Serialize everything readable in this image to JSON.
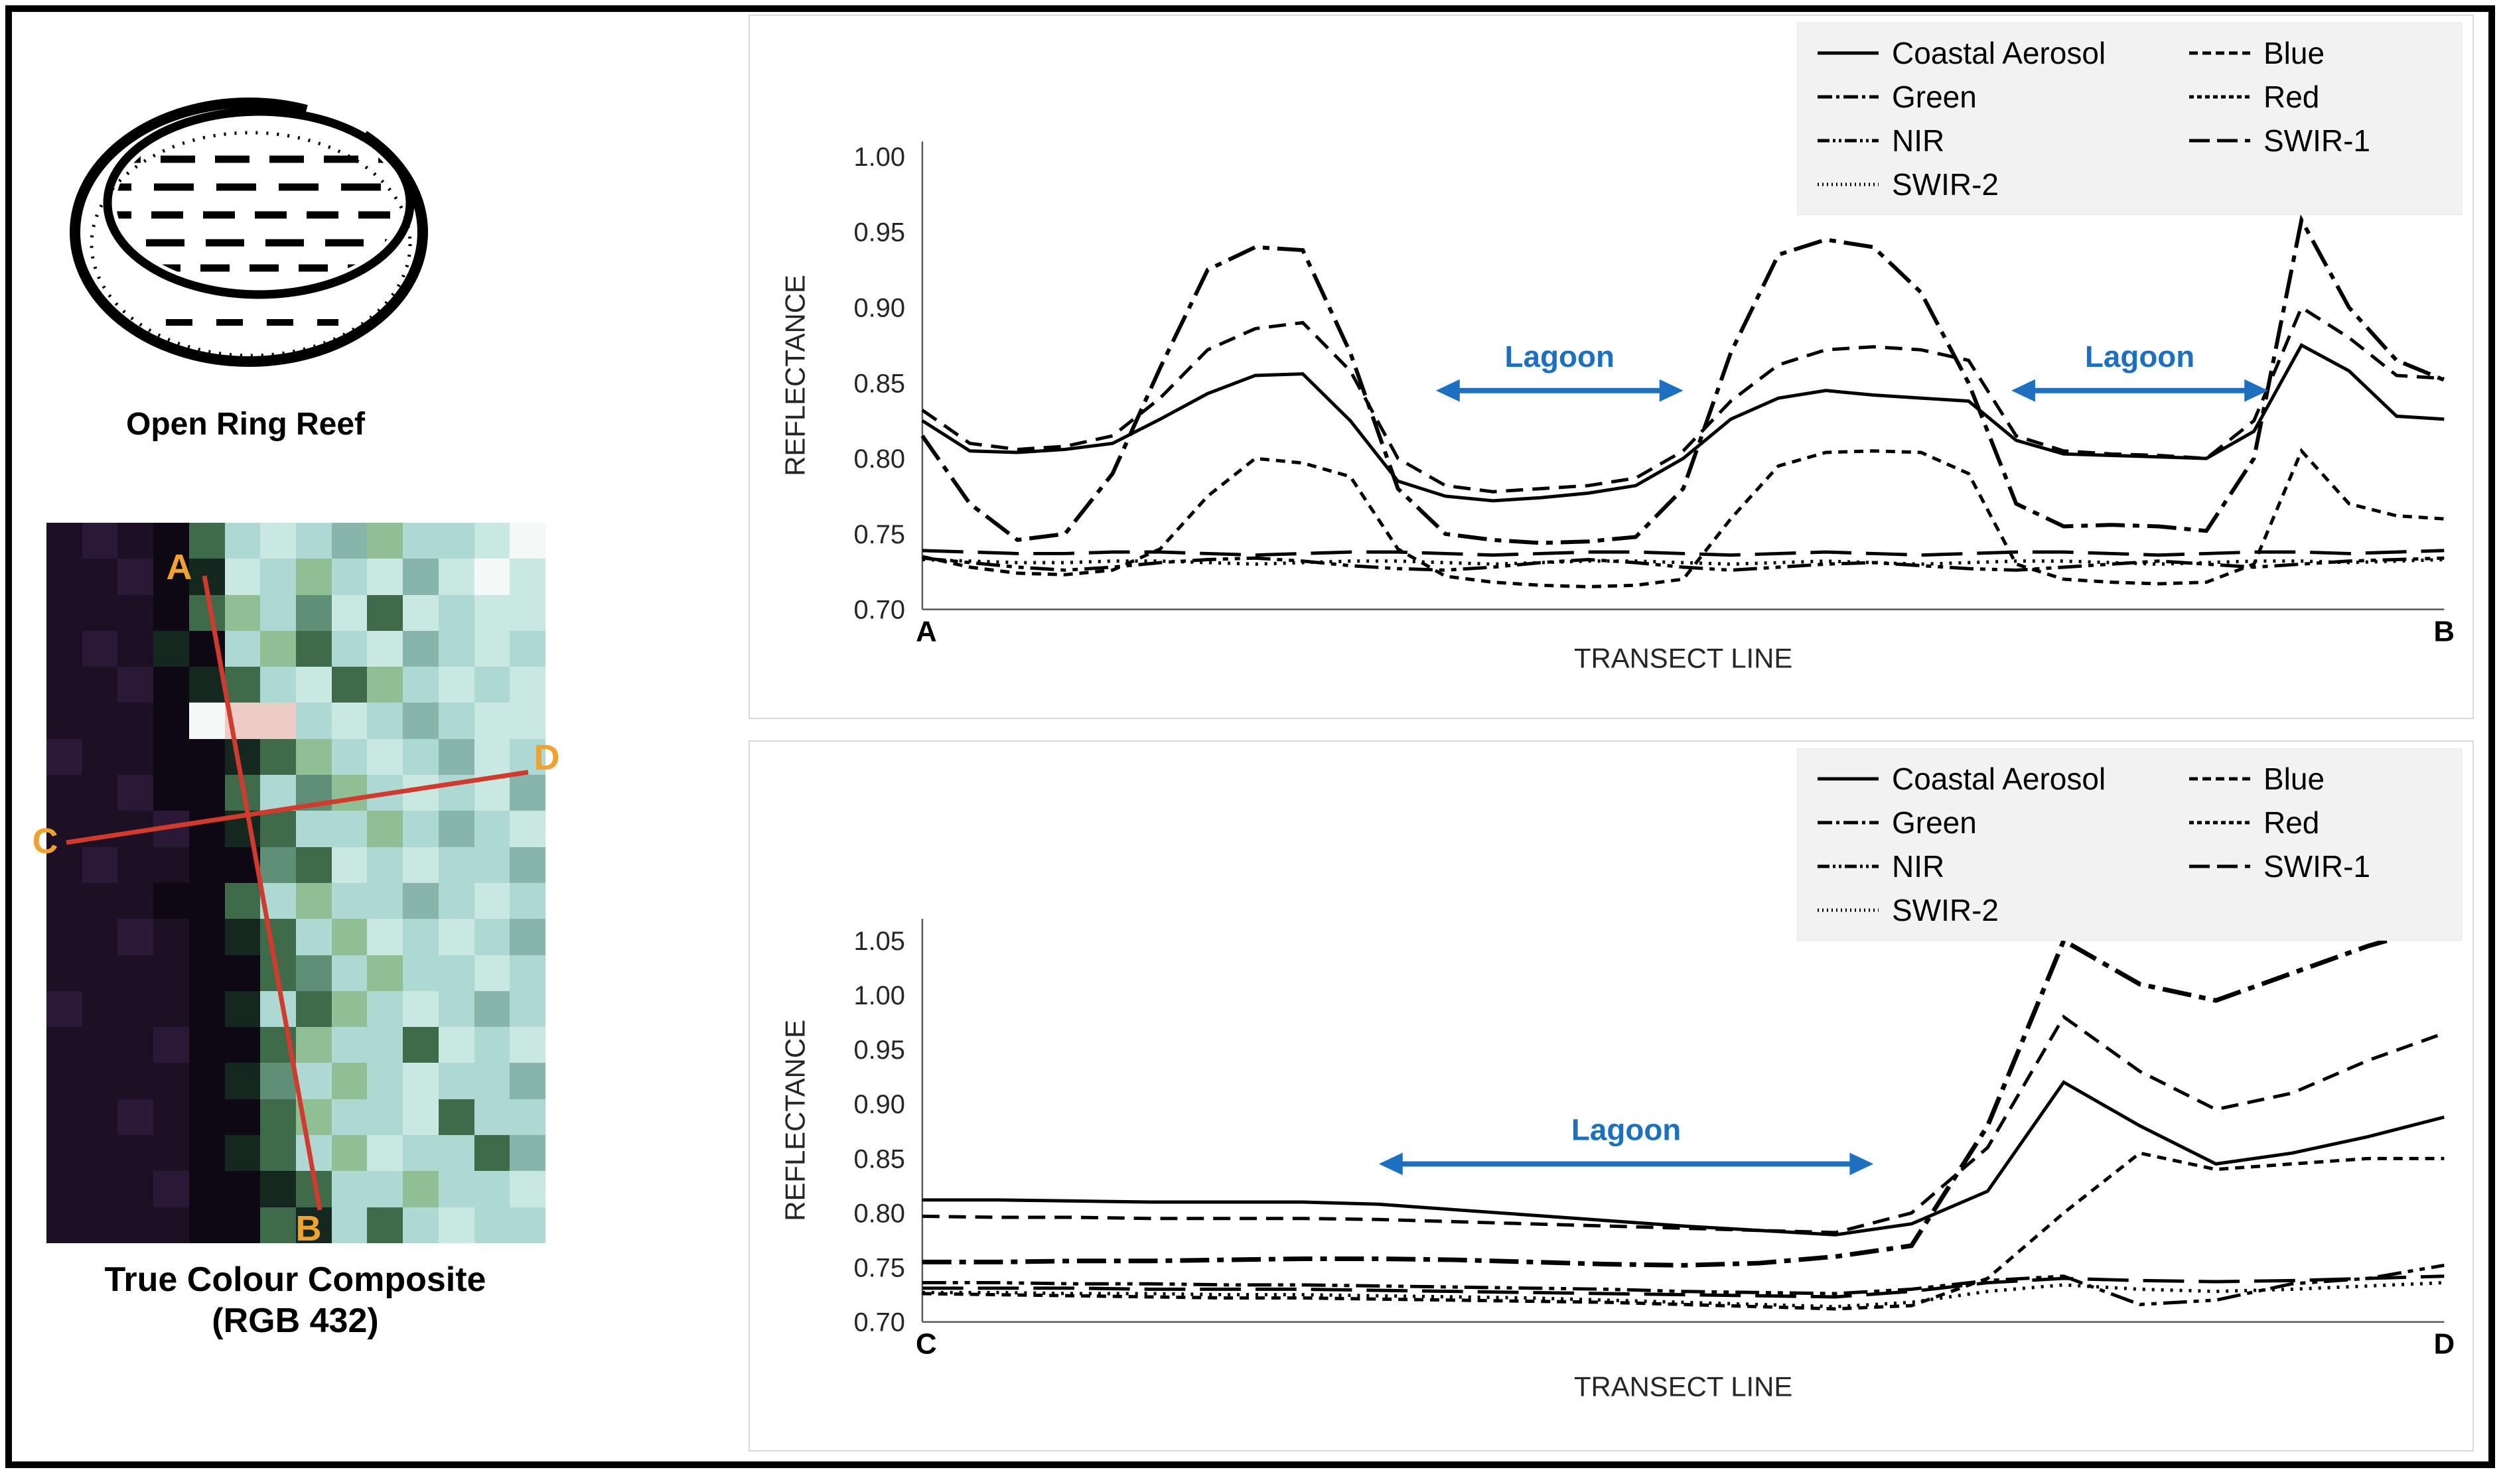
{
  "colors": {
    "transect_line": "#d23a2e",
    "transect_label": "#f0a230",
    "annotation_blue": "#1d6fbf",
    "series_color": "#000000",
    "legend_bg": "#f2f2f2"
  },
  "left_panel": {
    "reef_caption": "Open Ring Reef",
    "composite_caption_line1": "True Colour Composite",
    "composite_caption_line2": "(RGB 432)"
  },
  "satellite": {
    "palette": {
      "d": "#1c1024",
      "D": "#2a1836",
      "b": "#0e0814",
      "t": "#14281f",
      "g": "#3f6b4a",
      "G": "#8fbf92",
      "m": "#5f8f77",
      "c": "#aed8d2",
      "C": "#c9e8e2",
      "w": "#f4f8f6",
      "p": "#ecccc4",
      "s": "#87b4ab"
    },
    "rows": [
      "dDdbgcCcsGccCw",
      "ddDbtCcGcCsCwC",
      "dddbgGcmCgCcCC",
      "dDdtbcGgcCscCc",
      "ddDbtgcCgGcCcC",
      "dddbwppcCcscCC",
      "DddbbtgGcCcsCc",
      "ddDbbgcmGcCcCs",
      "dddDbtgccGcscC",
      "dDddbbmgCcCccs",
      "dddbbgcGccscCc",
      "ddDdbtgcGCcCcs",
      "ddddbbgmcGccCc",
      "DdddbtcgGcCcsc",
      "dddDbbgGccgCcC",
      "ddddbtmcGcCccs",
      "ddDdbbgGccCgcc",
      "ddddbtgcGCccgs",
      "dddDbbtgccGccC",
      "ddddbbgtcgcCcc"
    ],
    "transects": {
      "ab": {
        "start_label": "A",
        "end_label": "B"
      },
      "cd": {
        "start_label": "C",
        "end_label": "D"
      }
    }
  },
  "chart_data": [
    {
      "type": "line",
      "title": "",
      "xlabel": "TRANSECT LINE",
      "ylabel": "REFLECTANCE",
      "x_start_label": "A",
      "x_end_label": "B",
      "ylim": [
        0.7,
        1.01
      ],
      "yticks": [
        0.7,
        0.75,
        0.8,
        0.85,
        0.9,
        0.95,
        1.0
      ],
      "grid": false,
      "legend_position": "top-right",
      "series": [
        {
          "name": "Coastal Aerosol",
          "dash": "",
          "width": 5,
          "values": [
            0.825,
            0.805,
            0.804,
            0.806,
            0.81,
            0.826,
            0.843,
            0.855,
            0.856,
            0.825,
            0.785,
            0.775,
            0.772,
            0.774,
            0.777,
            0.782,
            0.8,
            0.826,
            0.84,
            0.845,
            0.842,
            0.84,
            0.838,
            0.812,
            0.803,
            0.802,
            0.801,
            0.8,
            0.818,
            0.875,
            0.858,
            0.828,
            0.826
          ]
        },
        {
          "name": "Blue",
          "dash": "26 14",
          "width": 5,
          "values": [
            0.832,
            0.81,
            0.806,
            0.808,
            0.815,
            0.84,
            0.872,
            0.886,
            0.89,
            0.858,
            0.8,
            0.782,
            0.778,
            0.78,
            0.782,
            0.787,
            0.805,
            0.838,
            0.862,
            0.872,
            0.874,
            0.872,
            0.865,
            0.815,
            0.805,
            0.803,
            0.802,
            0.8,
            0.825,
            0.9,
            0.88,
            0.855,
            0.853
          ]
        },
        {
          "name": "Green",
          "dash": "44 12 10 12",
          "width": 6,
          "values": [
            0.815,
            0.77,
            0.746,
            0.75,
            0.79,
            0.86,
            0.925,
            0.94,
            0.938,
            0.87,
            0.78,
            0.75,
            0.746,
            0.744,
            0.745,
            0.748,
            0.78,
            0.87,
            0.935,
            0.945,
            0.94,
            0.91,
            0.85,
            0.77,
            0.755,
            0.756,
            0.755,
            0.752,
            0.8,
            0.958,
            0.9,
            0.865,
            0.852
          ]
        },
        {
          "name": "Red",
          "dash": "14 10",
          "width": 5,
          "values": [
            0.735,
            0.728,
            0.724,
            0.723,
            0.726,
            0.74,
            0.775,
            0.8,
            0.797,
            0.788,
            0.74,
            0.722,
            0.718,
            0.716,
            0.715,
            0.716,
            0.72,
            0.76,
            0.795,
            0.804,
            0.805,
            0.804,
            0.79,
            0.73,
            0.72,
            0.718,
            0.717,
            0.718,
            0.73,
            0.805,
            0.77,
            0.762,
            0.76
          ]
        },
        {
          "name": "NIR",
          "dash": "36 10 8 10 8 10",
          "width": 5,
          "values": [
            0.734,
            0.731,
            0.728,
            0.726,
            0.728,
            0.731,
            0.733,
            0.734,
            0.732,
            0.729,
            0.727,
            0.726,
            0.728,
            0.731,
            0.733,
            0.731,
            0.728,
            0.726,
            0.728,
            0.73,
            0.731,
            0.729,
            0.727,
            0.726,
            0.728,
            0.73,
            0.732,
            0.73,
            0.728,
            0.73,
            0.732,
            0.733,
            0.734
          ]
        },
        {
          "name": "SWIR-1",
          "dash": "62 22",
          "width": 5,
          "values": [
            0.739,
            0.738,
            0.737,
            0.737,
            0.738,
            0.738,
            0.737,
            0.736,
            0.737,
            0.738,
            0.738,
            0.737,
            0.736,
            0.737,
            0.738,
            0.738,
            0.737,
            0.736,
            0.737,
            0.738,
            0.737,
            0.736,
            0.737,
            0.738,
            0.738,
            0.737,
            0.736,
            0.737,
            0.738,
            0.738,
            0.737,
            0.738,
            0.739
          ]
        },
        {
          "name": "SWIR-2",
          "dash": "4 10",
          "width": 5,
          "values": [
            0.733,
            0.732,
            0.731,
            0.731,
            0.732,
            0.732,
            0.731,
            0.73,
            0.731,
            0.732,
            0.732,
            0.731,
            0.73,
            0.731,
            0.732,
            0.732,
            0.731,
            0.73,
            0.731,
            0.732,
            0.731,
            0.73,
            0.731,
            0.732,
            0.732,
            0.731,
            0.73,
            0.731,
            0.732,
            0.732,
            0.731,
            0.732,
            0.733
          ]
        }
      ],
      "annotations": [
        {
          "label": "Lagoon",
          "x_from": 10.8,
          "x_to": 16.0,
          "y": 0.845
        },
        {
          "label": "Lagoon",
          "x_from": 22.9,
          "x_to": 28.3,
          "y": 0.845
        }
      ]
    },
    {
      "type": "line",
      "title": "",
      "xlabel": "TRANSECT LINE",
      "ylabel": "REFLECTANCE",
      "x_start_label": "C",
      "x_end_label": "D",
      "ylim": [
        0.7,
        1.07
      ],
      "yticks": [
        0.7,
        0.75,
        0.8,
        0.85,
        0.9,
        0.95,
        1.0,
        1.05
      ],
      "grid": false,
      "legend_position": "top-right",
      "series": [
        {
          "name": "Coastal Aerosol",
          "dash": "",
          "width": 5,
          "values": [
            0.812,
            0.812,
            0.811,
            0.81,
            0.81,
            0.81,
            0.808,
            0.803,
            0.798,
            0.793,
            0.788,
            0.784,
            0.78,
            0.79,
            0.82,
            0.92,
            0.88,
            0.845,
            0.855,
            0.87,
            0.888
          ]
        },
        {
          "name": "Blue",
          "dash": "26 14",
          "width": 5,
          "values": [
            0.797,
            0.796,
            0.796,
            0.795,
            0.795,
            0.795,
            0.794,
            0.792,
            0.79,
            0.788,
            0.786,
            0.784,
            0.782,
            0.8,
            0.86,
            0.98,
            0.93,
            0.895,
            0.91,
            0.94,
            0.965
          ]
        },
        {
          "name": "Green",
          "dash": "44 12 10 12",
          "width": 7,
          "values": [
            0.755,
            0.755,
            0.756,
            0.756,
            0.757,
            0.758,
            0.758,
            0.757,
            0.755,
            0.753,
            0.752,
            0.754,
            0.76,
            0.77,
            0.88,
            1.05,
            1.01,
            0.995,
            1.02,
            1.045,
            1.065
          ]
        },
        {
          "name": "Red",
          "dash": "14 10",
          "width": 5,
          "values": [
            0.726,
            0.725,
            0.724,
            0.723,
            0.722,
            0.722,
            0.721,
            0.72,
            0.719,
            0.718,
            0.716,
            0.714,
            0.712,
            0.715,
            0.74,
            0.8,
            0.855,
            0.84,
            0.845,
            0.85,
            0.85
          ]
        },
        {
          "name": "NIR",
          "dash": "36 10 8 10 8 10",
          "width": 5,
          "values": [
            0.736,
            0.736,
            0.735,
            0.735,
            0.734,
            0.734,
            0.733,
            0.732,
            0.731,
            0.73,
            0.728,
            0.727,
            0.726,
            0.73,
            0.738,
            0.742,
            0.716,
            0.72,
            0.735,
            0.74,
            0.752
          ]
        },
        {
          "name": "SWIR-1",
          "dash": "62 22",
          "width": 5,
          "values": [
            0.731,
            0.731,
            0.731,
            0.73,
            0.73,
            0.73,
            0.729,
            0.728,
            0.727,
            0.726,
            0.725,
            0.724,
            0.723,
            0.728,
            0.736,
            0.74,
            0.738,
            0.737,
            0.738,
            0.74,
            0.742
          ]
        },
        {
          "name": "SWIR-2",
          "dash": "4 10",
          "width": 5,
          "values": [
            0.727,
            0.727,
            0.726,
            0.726,
            0.725,
            0.725,
            0.724,
            0.723,
            0.722,
            0.72,
            0.718,
            0.716,
            0.714,
            0.718,
            0.728,
            0.734,
            0.73,
            0.728,
            0.73,
            0.733,
            0.736
          ]
        }
      ],
      "annotations": [
        {
          "label": "Lagoon",
          "x_from": 6.0,
          "x_to": 12.5,
          "y": 0.845
        }
      ]
    }
  ]
}
